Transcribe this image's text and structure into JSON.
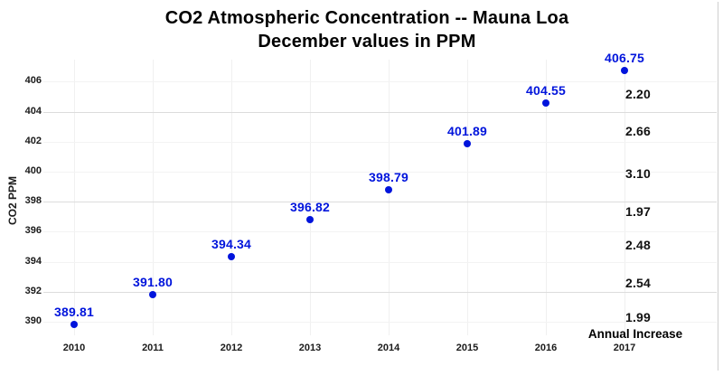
{
  "chart_data": {
    "type": "scatter",
    "title": "CO2 Atmospheric Concentration -- Mauna Loa",
    "subtitle": "December values in PPM",
    "ylabel": "CO2 PPM",
    "categories": [
      "2010",
      "2011",
      "2012",
      "2013",
      "2014",
      "2015",
      "2016",
      "2017"
    ],
    "values": [
      "389.81",
      "391.80",
      "394.34",
      "396.82",
      "398.79",
      "401.89",
      "404.55",
      "406.75"
    ],
    "annual_increases": [
      "1.99",
      "2.54",
      "2.48",
      "1.97",
      "3.10",
      "2.66",
      "2.20"
    ],
    "annual_increase_label": "Annual Increase",
    "yticks": [
      "390",
      "392",
      "394",
      "396",
      "398",
      "400",
      "402",
      "404",
      "406"
    ],
    "major_yticks": [
      "392",
      "398",
      "404"
    ],
    "ylim": [
      389,
      407.5
    ],
    "grid": true,
    "legend": "none",
    "point_color": "#0014dc",
    "point_label_color": "#0014dc",
    "increase_color": "#111111"
  }
}
